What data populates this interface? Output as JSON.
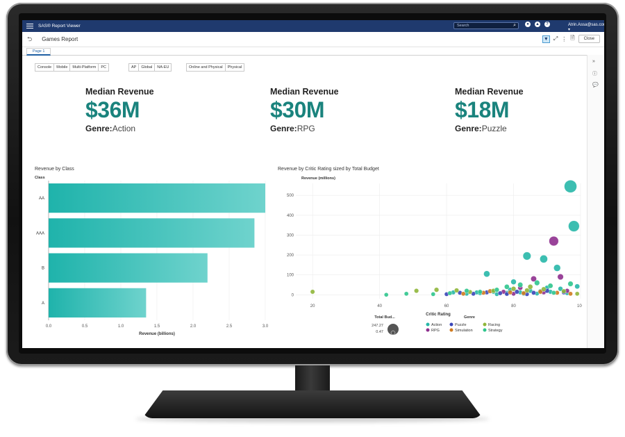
{
  "app": {
    "title": "SAS® Report Viewer",
    "search_placeholder": "Search",
    "user": "Atrin.Assa@sas.com ▾",
    "report_title": "Games Report",
    "close_label": "Close",
    "tab_label": "Page 1"
  },
  "filters": {
    "platform": [
      "Console",
      "Mobile",
      "Multi-Platform",
      "PC"
    ],
    "region": [
      "AP",
      "Global",
      "NA-EU"
    ],
    "channel": [
      "Online and Physical",
      "Physical"
    ]
  },
  "kpis": [
    {
      "label": "Median Revenue",
      "value": "$36M",
      "genre_label": "Genre:",
      "genre": "Action"
    },
    {
      "label": "Median Revenue",
      "value": "$30M",
      "genre_label": "Genre:",
      "genre": "RPG"
    },
    {
      "label": "Median Revenue",
      "value": "$18M",
      "genre_label": "Genre:",
      "genre": "Puzzle"
    }
  ],
  "chart_data": [
    {
      "type": "bar",
      "orientation": "horizontal",
      "title": "Revenue by Class",
      "ylabel": "Class",
      "xlabel": "Revenue (billions)",
      "categories": [
        "AA",
        "AAA",
        "B",
        "A"
      ],
      "values": [
        3.0,
        2.85,
        2.2,
        1.35
      ],
      "xlim": [
        0,
        3.0
      ],
      "xticks": [
        "0.0",
        "0.5",
        "1.0",
        "1.5",
        "2.0",
        "2.5",
        "3.0"
      ],
      "color": "#2fc0b8"
    },
    {
      "type": "scatter",
      "title": "Revenue by Critic Rating sized by Total Budget",
      "xlabel": "Critic Rating",
      "ylabel": "Revenue (millions)",
      "xlim": [
        15,
        100
      ],
      "ylim": [
        -20,
        560
      ],
      "xticks": [
        "20",
        "40",
        "60",
        "80",
        "100"
      ],
      "yticks": [
        "0",
        "100",
        "200",
        "300",
        "400",
        "500"
      ],
      "size_legend": {
        "title": "Total Bud...",
        "max": "247.27",
        "min": "0.47"
      },
      "legend_title": "Genre",
      "series": [
        {
          "name": "Action",
          "color": "#27b7a8",
          "points": [
            [
              70,
              8
            ],
            [
              74,
              15
            ],
            [
              78,
              10
            ],
            [
              82,
              12
            ],
            [
              85,
              20
            ],
            [
              88,
              18
            ],
            [
              90,
              35
            ],
            [
              94,
              30
            ],
            [
              62,
              12
            ],
            [
              66,
              5
            ],
            [
              79,
              25
            ],
            [
              91,
              15
            ],
            [
              96,
              8
            ],
            [
              99,
              42
            ],
            [
              87,
              6
            ],
            [
              75,
              3
            ],
            [
              83,
              5
            ],
            [
              69,
              12
            ]
          ]
        },
        {
          "name": "RPG",
          "color": "#8e2f8e",
          "points": [
            [
              92,
              270
            ],
            [
              86,
              80
            ],
            [
              82,
              35
            ],
            [
              94,
              90
            ],
            [
              77,
              15
            ],
            [
              89,
              12
            ],
            [
              96,
              20
            ],
            [
              80,
              5
            ]
          ]
        },
        {
          "name": "Puzzle",
          "color": "#3a45b8",
          "points": [
            [
              60,
              3
            ],
            [
              64,
              10
            ],
            [
              68,
              5
            ],
            [
              72,
              12
            ],
            [
              76,
              8
            ],
            [
              81,
              15
            ],
            [
              86,
              10
            ],
            [
              90,
              20
            ],
            [
              95,
              12
            ],
            [
              78,
              4
            ],
            [
              84,
              3
            ]
          ]
        },
        {
          "name": "Simulation",
          "color": "#d07a1f",
          "points": [
            [
              65,
              5
            ],
            [
              71,
              10
            ],
            [
              79,
              12
            ],
            [
              83,
              8
            ],
            [
              88,
              15
            ],
            [
              93,
              10
            ],
            [
              97,
              5
            ],
            [
              73,
              18
            ]
          ]
        },
        {
          "name": "Racing",
          "color": "#8fb63a",
          "points": [
            [
              20,
              15
            ],
            [
              51,
              20
            ],
            [
              57,
              25
            ],
            [
              63,
              22
            ],
            [
              67,
              14
            ],
            [
              74,
              20
            ],
            [
              80,
              30
            ],
            [
              84,
              22
            ],
            [
              89,
              28
            ],
            [
              95,
              18
            ],
            [
              85,
              40
            ],
            [
              99,
              5
            ]
          ]
        },
        {
          "name": "Strategy",
          "color": "#2fc58d",
          "points": [
            [
              42,
              0
            ],
            [
              48,
              5
            ],
            [
              56,
              3
            ],
            [
              61,
              8
            ],
            [
              66,
              20
            ],
            [
              70,
              15
            ],
            [
              75,
              25
            ],
            [
              82,
              50
            ],
            [
              87,
              60
            ],
            [
              91,
              45
            ],
            [
              97,
              55
            ],
            [
              92,
              10
            ],
            [
              78,
              40
            ]
          ]
        },
        {
          "name": "Action",
          "color": "#27b7a8",
          "points": [
            [
              97,
              545
            ],
            [
              98,
              345
            ],
            [
              84,
              195
            ],
            [
              72,
              105
            ],
            [
              89,
              180
            ],
            [
              93,
              135
            ],
            [
              80,
              65
            ]
          ],
          "legend": false
        }
      ]
    }
  ]
}
